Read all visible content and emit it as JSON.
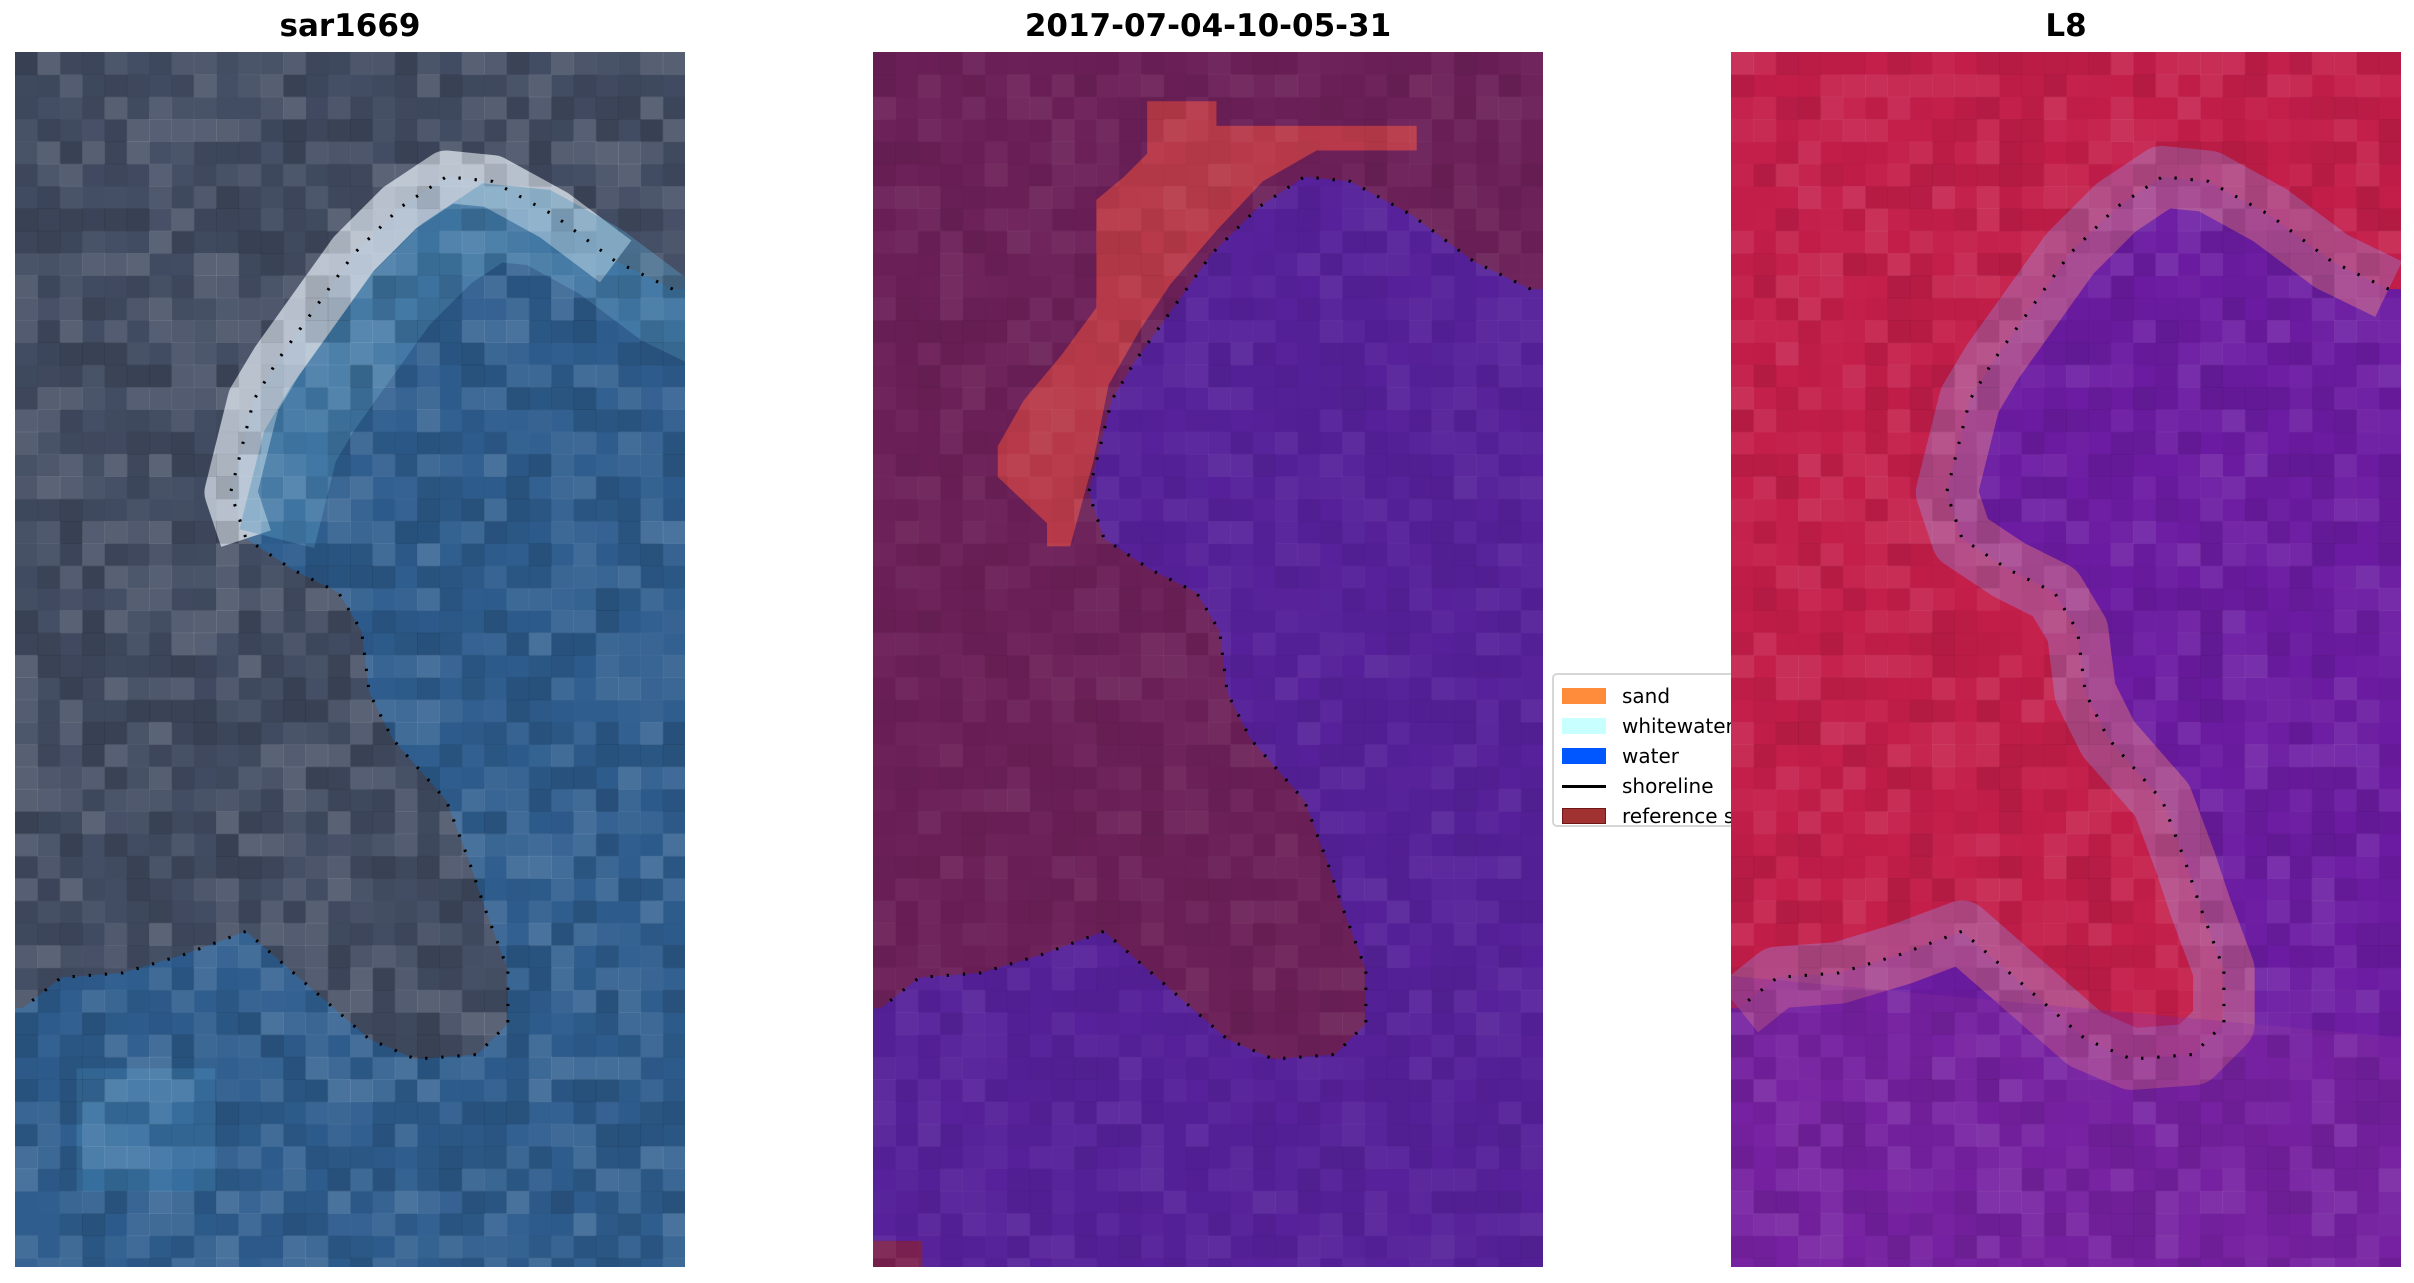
{
  "chart_data": {
    "type": "image-panels",
    "panels": [
      {
        "title": "sar1669",
        "kind": "rgb image"
      },
      {
        "title": "2017-07-04-10-05-31",
        "kind": "classified image"
      },
      {
        "title": "L8",
        "kind": "rgb image"
      }
    ],
    "legend": {
      "placement": "center, between panels 2 and 3",
      "items": [
        {
          "label": "sand",
          "color": "#ff8c3a",
          "type": "patch"
        },
        {
          "label": "whitewater",
          "color": "#c8ffff",
          "type": "patch"
        },
        {
          "label": "water",
          "color": "#0057ff",
          "type": "patch"
        },
        {
          "label": "shoreline",
          "color": "#000000",
          "type": "line"
        },
        {
          "label": "reference s",
          "color": "#a03232",
          "type": "patch"
        }
      ]
    },
    "axes": "off"
  }
}
